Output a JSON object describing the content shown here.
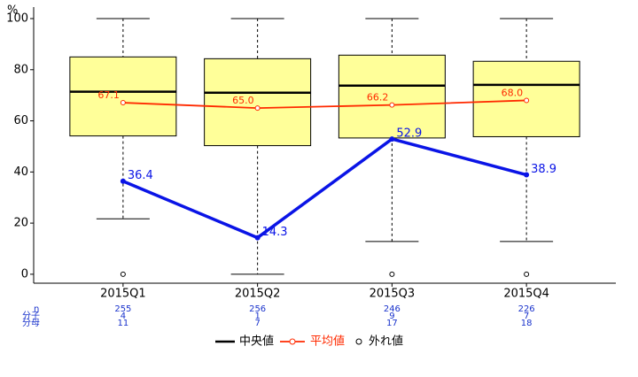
{
  "chart_data": {
    "type": "box",
    "y_label": "%",
    "categories": [
      "2015Q1",
      "2015Q2",
      "2015Q3",
      "2015Q4"
    ],
    "ylim": [
      -3.5,
      104.5
    ],
    "yticks": [
      0,
      20,
      40,
      60,
      80,
      100
    ],
    "box_color": "#ffff99",
    "boxes": [
      {
        "low": 21.7,
        "q1": 54.1,
        "median": 71.4,
        "q3": 85.0,
        "high": 100,
        "outliers": [
          0
        ]
      },
      {
        "low": 0,
        "q1": 50.3,
        "median": 71.0,
        "q3": 84.3,
        "high": 100,
        "outliers": []
      },
      {
        "low": 12.8,
        "q1": 53.3,
        "median": 73.8,
        "q3": 85.7,
        "high": 100,
        "outliers": [
          0
        ]
      },
      {
        "low": 12.8,
        "q1": 53.8,
        "median": 74.1,
        "q3": 83.3,
        "high": 100,
        "outliers": [
          0
        ]
      }
    ],
    "median_name": "中央値",
    "outlier_name": "外れ値",
    "mean": {
      "name": "平均値",
      "color": "#ff2a00",
      "values": [
        67.1,
        65.0,
        66.2,
        68.0
      ],
      "value_labels": [
        "67.1",
        "65.0",
        "66.2",
        "68.0"
      ]
    },
    "line": {
      "color": "#0a14e6",
      "values": [
        36.4,
        14.3,
        52.9,
        38.9
      ]
    },
    "table": {
      "color": "#1a33cc",
      "row_labels": [
        "n",
        "分子",
        "分母"
      ],
      "rows": [
        [
          255,
          256,
          246,
          226
        ],
        [
          4,
          1,
          9,
          7
        ],
        [
          11,
          7,
          17,
          18
        ]
      ]
    }
  }
}
